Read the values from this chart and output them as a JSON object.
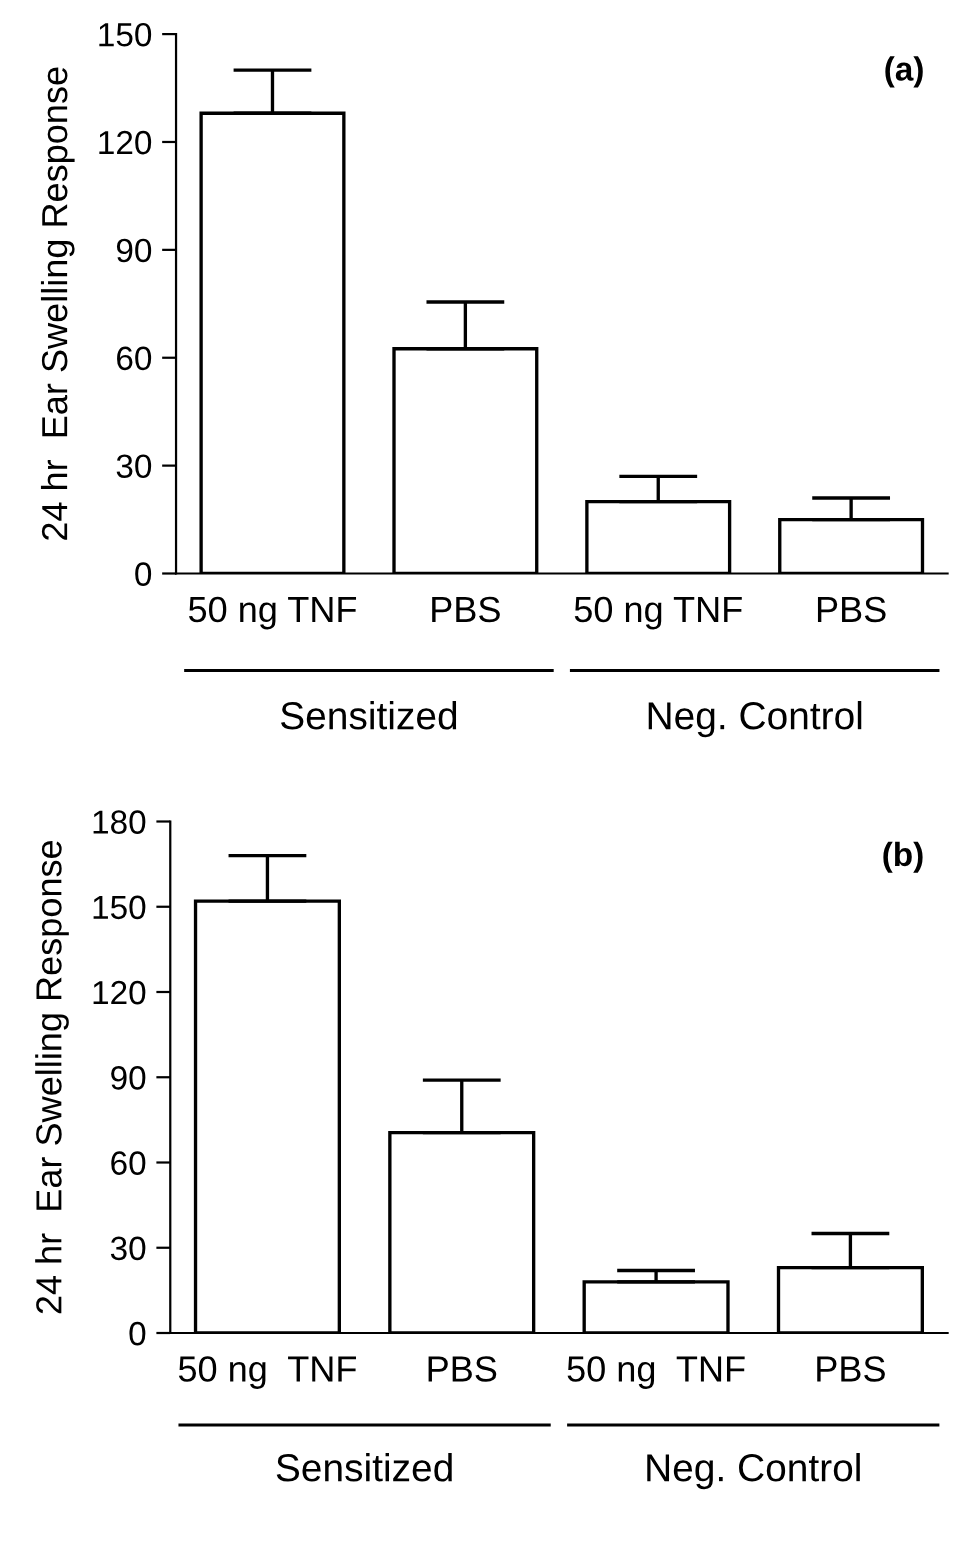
{
  "chart_data": [
    {
      "type": "bar",
      "title": "(a)",
      "ylabel": "24 hr  Ear Swelling Response",
      "categories": [
        "50 ng TNF",
        "PBS",
        "50 ng TNF",
        "PBS"
      ],
      "values": [
        128,
        62.5,
        20,
        15
      ],
      "errors": [
        [
          128,
          140
        ],
        [
          62.5,
          75.5
        ],
        [
          20,
          27
        ],
        [
          15,
          21
        ]
      ],
      "color": "#ffffff",
      "ylim": [
        0,
        150
      ],
      "yticks": [
        0,
        30,
        60,
        90,
        120,
        150
      ],
      "annotations": [
        "Sensitized",
        "Neg. Control"
      ]
    },
    {
      "type": "bar",
      "title": "(b)",
      "ylabel": "24 hr  Ear Swelling Response",
      "categories": [
        "50 ng  TNF",
        "PBS",
        "50 ng  TNF",
        "PBS"
      ],
      "values": [
        152,
        70.5,
        18,
        23
      ],
      "errors": [
        [
          152,
          168
        ],
        [
          70.5,
          89
        ],
        [
          18,
          22
        ],
        [
          23,
          35
        ]
      ],
      "color": "#ffffff",
      "ylim": [
        0,
        180
      ],
      "yticks": [
        0,
        30,
        60,
        90,
        120,
        150,
        180
      ],
      "annotations": [
        "Sensitized",
        "Neg. Control"
      ]
    }
  ]
}
